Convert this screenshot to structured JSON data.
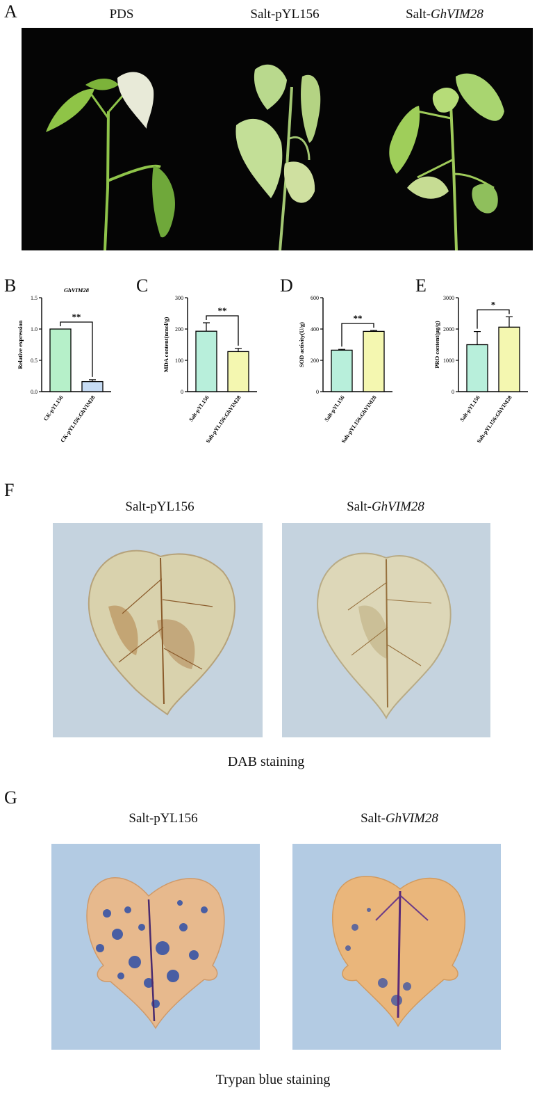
{
  "panel_a": {
    "letter": "A",
    "titles": [
      {
        "prefix": "PDS",
        "gene": ""
      },
      {
        "prefix": "Salt-pYL156",
        "gene": ""
      },
      {
        "prefix": "Salt-",
        "gene": "GhVIM28"
      }
    ]
  },
  "panel_f": {
    "letter": "F",
    "titles": [
      {
        "prefix": "Salt-pYL156",
        "gene": ""
      },
      {
        "prefix": "Salt-",
        "gene": "GhVIM28"
      }
    ],
    "caption": "DAB staining"
  },
  "panel_g": {
    "letter": "G",
    "titles": [
      {
        "prefix": "Salt-pYL156",
        "gene": ""
      },
      {
        "prefix": "Salt-",
        "gene": "GhVIM28"
      }
    ],
    "caption": "Trypan blue staining"
  },
  "colors": {
    "bar_control": "#b6f0c9",
    "bar_b_treat": "#c7dcf4",
    "bar_treat": "#f4f7b0",
    "bar_teal": "#b8efdb"
  },
  "chart_data": [
    {
      "letter": "B",
      "type": "bar",
      "title": "GhVIM28",
      "ylabel": "Relative expression",
      "categories": [
        "CK-pYL156",
        "CK-pYL156:GhVIM28"
      ],
      "values": [
        1.0,
        0.16
      ],
      "errors": [
        0,
        0.03
      ],
      "ylim": [
        0,
        1.5
      ],
      "yticks": [
        "0.0",
        "0.5",
        "1.0",
        "1.5"
      ],
      "tick_values": [
        0,
        0.5,
        1.0,
        1.5
      ],
      "significance": "**"
    },
    {
      "letter": "C",
      "type": "bar",
      "title": "",
      "ylabel": "MDA content(nmol/g)",
      "categories": [
        "Salt-pYL156",
        "Salt-pYL156:GhVIM28"
      ],
      "values": [
        193,
        128
      ],
      "errors": [
        27,
        10
      ],
      "ylim": [
        0,
        300
      ],
      "yticks": [
        "0",
        "100",
        "200",
        "300"
      ],
      "tick_values": [
        0,
        100,
        200,
        300
      ],
      "significance": "**"
    },
    {
      "letter": "D",
      "type": "bar",
      "title": "",
      "ylabel": "SOD activity(U/g)",
      "categories": [
        "Salt-pYL156",
        "Salt-pYL156:GhVIM28"
      ],
      "values": [
        265,
        385
      ],
      "errors": [
        5,
        6
      ],
      "ylim": [
        0,
        600
      ],
      "yticks": [
        "0",
        "200",
        "400",
        "600"
      ],
      "tick_values": [
        0,
        200,
        400,
        600
      ],
      "significance": "**"
    },
    {
      "letter": "E",
      "type": "bar",
      "title": "",
      "ylabel": "PRO content(μg/g)",
      "categories": [
        "Salt-pYL156",
        "Salt-pYL156:GhVIM28"
      ],
      "values": [
        1500,
        2060
      ],
      "errors": [
        420,
        330
      ],
      "ylim": [
        0,
        3000
      ],
      "yticks": [
        "0",
        "1000",
        "2000",
        "3000"
      ],
      "tick_values": [
        0,
        1000,
        2000,
        3000
      ],
      "significance": "*"
    }
  ]
}
